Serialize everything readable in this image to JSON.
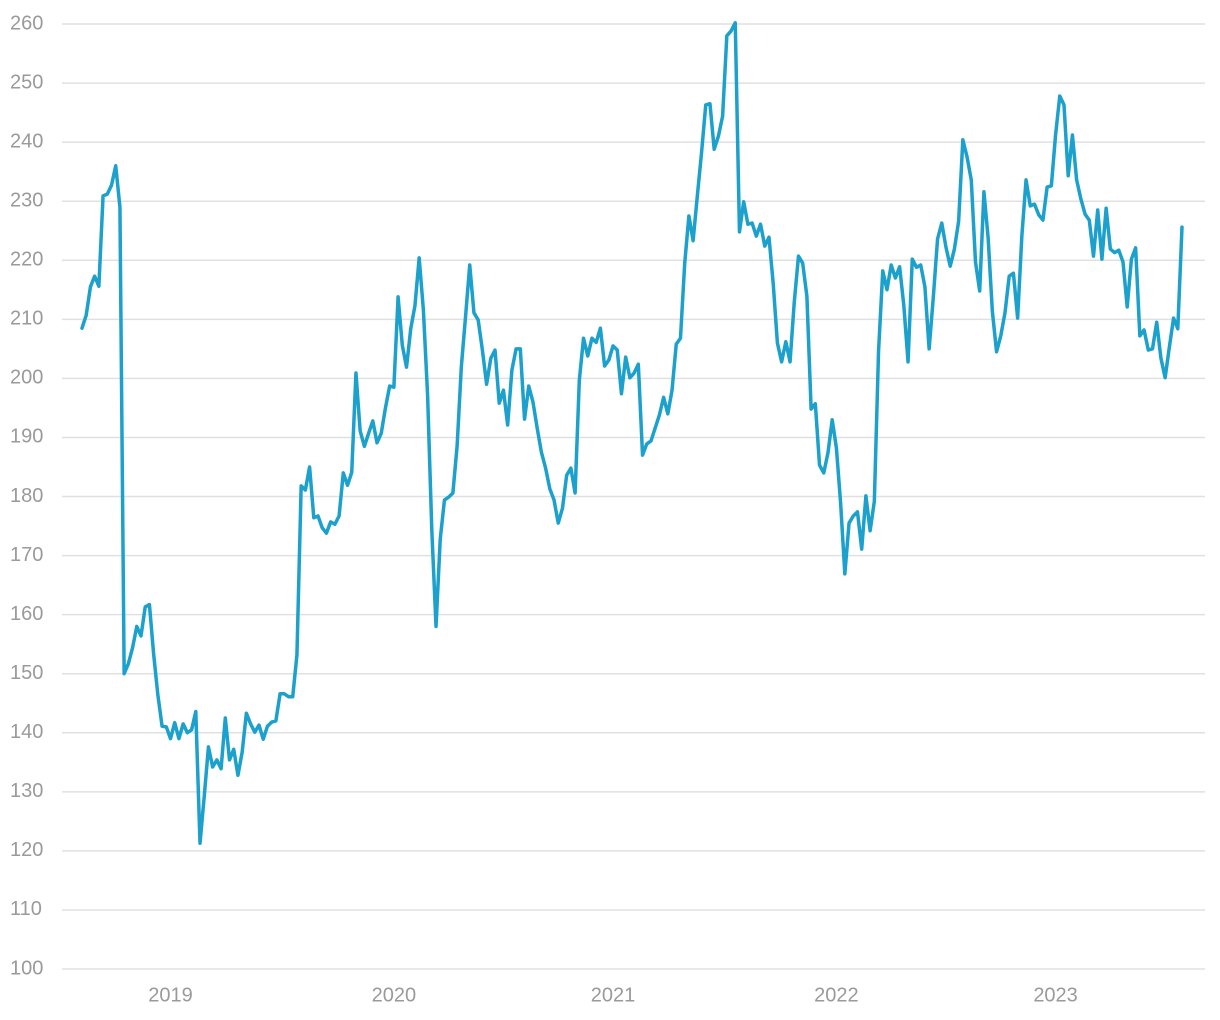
{
  "chart_data": {
    "type": "line",
    "categories": [
      null,
      null,
      null,
      null,
      null,
      null,
      null,
      null,
      null,
      null,
      null,
      null,
      null,
      null,
      null,
      null,
      null,
      null,
      null,
      null,
      null,
      "2019",
      null,
      null,
      null,
      null,
      null,
      null,
      null,
      null,
      null,
      null,
      null,
      null,
      null,
      null,
      null,
      null,
      null,
      null,
      null,
      null,
      null,
      null,
      null,
      null,
      null,
      null,
      null,
      null,
      null,
      null,
      null,
      null,
      null,
      null,
      null,
      null,
      null,
      null,
      null,
      null,
      null,
      null,
      null,
      null,
      null,
      null,
      null,
      null,
      null,
      null,
      null,
      null,
      "2020",
      null,
      null,
      null,
      null,
      null,
      null,
      null,
      null,
      null,
      null,
      null,
      null,
      null,
      null,
      null,
      null,
      null,
      null,
      null,
      null,
      null,
      null,
      null,
      null,
      null,
      null,
      null,
      null,
      null,
      null,
      null,
      null,
      null,
      null,
      null,
      null,
      null,
      null,
      null,
      null,
      null,
      null,
      null,
      null,
      null,
      null,
      null,
      null,
      null,
      null,
      null,
      "2021",
      null,
      null,
      null,
      null,
      null,
      null,
      null,
      null,
      null,
      null,
      null,
      null,
      null,
      null,
      null,
      null,
      null,
      null,
      null,
      null,
      null,
      null,
      null,
      null,
      null,
      null,
      null,
      null,
      null,
      null,
      null,
      null,
      null,
      null,
      null,
      null,
      null,
      null,
      null,
      null,
      null,
      null,
      null,
      null,
      null,
      null,
      null,
      null,
      null,
      null,
      null,
      null,
      "2022",
      null,
      null,
      null,
      null,
      null,
      null,
      null,
      null,
      null,
      null,
      null,
      null,
      null,
      null,
      null,
      null,
      null,
      null,
      null,
      null,
      null,
      null,
      null,
      null,
      null,
      null,
      null,
      null,
      null,
      null,
      null,
      null,
      null,
      null,
      null,
      null,
      null,
      null,
      null,
      null,
      null,
      null,
      null,
      null,
      null,
      null,
      null,
      null,
      null,
      null,
      null,
      "2023",
      null,
      null,
      null,
      null,
      null,
      null,
      null,
      null,
      null,
      null,
      null,
      null,
      null,
      null,
      null,
      null,
      null,
      null,
      null,
      null,
      null,
      null,
      null,
      null,
      null,
      null,
      null,
      null,
      null,
      null
    ],
    "series": [
      {
        "color": "#1ca0cc",
        "values": [
          208.5,
          210.7,
          215.5,
          217.3,
          215.6,
          230.9,
          231.2,
          232.7,
          236,
          229,
          150,
          151.7,
          154.4,
          158,
          156.4,
          161.3,
          161.7,
          153.3,
          146.4,
          141.1,
          141,
          139,
          141.7,
          139,
          141.5,
          140,
          140.5,
          143.6,
          121.3,
          129.2,
          137.6,
          134.2,
          135.4,
          133.9,
          142.5,
          135.4,
          137.2,
          132.8,
          136.7,
          143.3,
          141.5,
          140.1,
          141.3,
          138.9,
          141.1,
          141.8,
          142,
          146.6,
          146.6,
          146.1,
          146.1,
          153.2,
          181.8,
          181.1,
          185,
          176.4,
          176.7,
          174.7,
          173.8,
          175.7,
          175.3,
          176.7,
          184,
          181.9,
          184.1,
          200.9,
          191.1,
          188.5,
          190.7,
          192.8,
          189.1,
          190.7,
          195,
          198.7,
          198.5,
          213.8,
          205.6,
          201.9,
          208.4,
          212.3,
          220.4,
          211.6,
          197.2,
          174.3,
          158,
          172.8,
          179.4,
          179.9,
          180.6,
          188.5,
          201.9,
          210.4,
          219.2,
          211.1,
          209.9,
          204.8,
          199,
          203.4,
          204.8,
          195.8,
          198,
          192.1,
          201.4,
          205,
          205,
          193.1,
          198.7,
          196,
          191.6,
          187.5,
          184.8,
          181.3,
          179.4,
          175.5,
          178,
          183.6,
          184.8,
          180.6,
          199.7,
          206.8,
          203.8,
          206.8,
          206.1,
          208.5,
          202.1,
          203.1,
          205.5,
          204.8,
          197.4,
          203.6,
          200.1,
          200.9,
          202.4,
          187,
          188.9,
          189.4,
          191.6,
          193.8,
          196.8,
          194,
          198,
          205.8,
          206.8,
          219.4,
          227.5,
          223.3,
          230.9,
          238.2,
          246.3,
          246.5,
          238.8,
          241,
          244.4,
          258,
          258.8,
          260.2,
          224.8,
          229.9,
          226.1,
          226.3,
          224.1,
          226.1,
          222.4,
          223.9,
          216.1,
          206,
          202.8,
          206.2,
          202.8,
          212.9,
          220.7,
          219.5,
          213.9,
          194.8,
          195.7,
          185.3,
          184,
          187.4,
          193,
          188.2,
          178.9,
          166.9,
          175.5,
          176.7,
          177.4,
          171.1,
          180.1,
          174.2,
          179.2,
          204.6,
          218.2,
          215,
          219.2,
          217,
          218.9,
          212.3,
          202.8,
          220.2,
          218.8,
          219.2,
          215.5,
          205,
          213.8,
          223.6,
          226.3,
          222.2,
          219,
          221.9,
          226.6,
          240.4,
          237.5,
          233.6,
          219.7,
          214.8,
          231.6,
          223.8,
          211.4,
          204.5,
          207.2,
          211.1,
          217.3,
          217.8,
          210.2,
          224.1,
          233.6,
          229.2,
          229.5,
          227.7,
          226.8,
          232.4,
          232.6,
          241.2,
          247.8,
          246.3,
          234.3,
          241.2,
          233.6,
          230.4,
          227.8,
          226.8,
          220.7,
          228.5,
          220.2,
          228.8,
          221.9,
          221.3,
          221.7,
          219.7,
          212.1,
          220.2,
          222.1,
          207.2,
          208.2,
          204.8,
          205,
          209.5,
          203.4,
          200.1,
          205.3,
          210.2,
          208.4,
          225.6
        ]
      }
    ],
    "ylim": [
      100,
      260
    ],
    "yticks": [
      100,
      110,
      120,
      130,
      140,
      150,
      160,
      170,
      180,
      190,
      200,
      210,
      220,
      230,
      240,
      250,
      260
    ],
    "grid": true
  }
}
